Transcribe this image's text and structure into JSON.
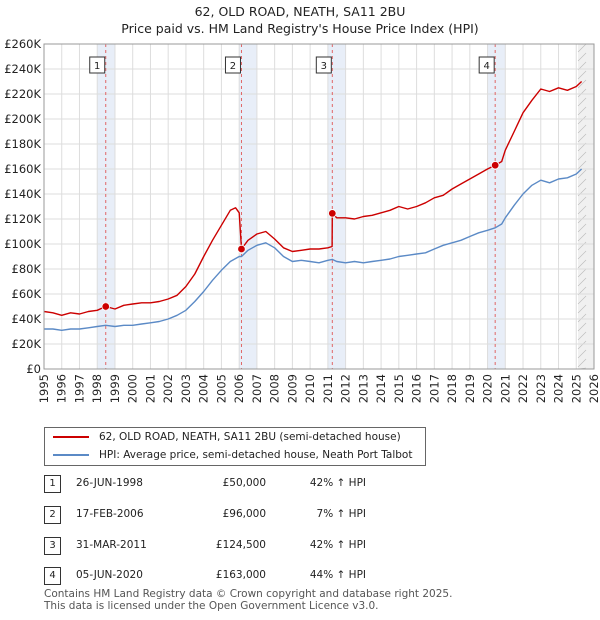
{
  "title_line1": "62, OLD ROAD, NEATH, SA11 2BU",
  "title_line2": "Price paid vs. HM Land Registry's House Price Index (HPI)",
  "colors": {
    "property_line": "#cc0000",
    "hpi_line": "#5b8ac6",
    "vline": "#e06666",
    "shade": "#e8eef8",
    "grid": "#dddddd"
  },
  "legend": {
    "property_label": "62, OLD ROAD, NEATH, SA11 2BU (semi-detached house)",
    "hpi_label": "HPI: Average price, semi-detached house, Neath Port Talbot"
  },
  "sales": [
    {
      "num": "1",
      "date": "26-JUN-1998",
      "price": "£50,000",
      "hpi": "42% ↑ HPI"
    },
    {
      "num": "2",
      "date": "17-FEB-2006",
      "price": "£96,000",
      "hpi": "7% ↑ HPI"
    },
    {
      "num": "3",
      "date": "31-MAR-2011",
      "price": "£124,500",
      "hpi": "42% ↑ HPI"
    },
    {
      "num": "4",
      "date": "05-JUN-2020",
      "price": "£163,000",
      "hpi": "44% ↑ HPI"
    }
  ],
  "footer_line1": "Contains HM Land Registry data © Crown copyright and database right 2025.",
  "footer_line2": "This data is licensed under the Open Government Licence v3.0.",
  "chart_data": {
    "type": "line",
    "title": "Price paid vs. HM Land Registry's House Price Index (HPI)",
    "xlabel": "",
    "ylabel": "",
    "xlim": [
      1995,
      2026
    ],
    "ylim": [
      0,
      260000
    ],
    "x_ticks": [
      1995,
      1996,
      1997,
      1998,
      1999,
      2000,
      2001,
      2002,
      2003,
      2004,
      2005,
      2006,
      2007,
      2008,
      2009,
      2010,
      2011,
      2012,
      2013,
      2014,
      2015,
      2016,
      2017,
      2018,
      2019,
      2020,
      2021,
      2022,
      2023,
      2024,
      2025,
      2026
    ],
    "y_ticks": [
      0,
      20000,
      40000,
      60000,
      80000,
      100000,
      120000,
      140000,
      160000,
      180000,
      200000,
      220000,
      240000,
      260000
    ],
    "y_tick_labels": [
      "£0",
      "£20K",
      "£40K",
      "£60K",
      "£80K",
      "£100K",
      "£120K",
      "£140K",
      "£160K",
      "£180K",
      "£200K",
      "£220K",
      "£240K",
      "£260K"
    ],
    "sale_markers": [
      {
        "label": "1",
        "x": 1998.48,
        "y": 50000
      },
      {
        "label": "2",
        "x": 2006.13,
        "y": 96000
      },
      {
        "label": "3",
        "x": 2011.25,
        "y": 124500
      },
      {
        "label": "4",
        "x": 2020.43,
        "y": 163000
      }
    ],
    "forecast_start": 2025.1,
    "series": [
      {
        "name": "62, OLD ROAD, NEATH, SA11 2BU (semi-detached house)",
        "x": [
          1995.0,
          1995.5,
          1996.0,
          1996.5,
          1997.0,
          1997.5,
          1998.0,
          1998.48,
          1999.0,
          1999.5,
          2000.0,
          2000.5,
          2001.0,
          2001.5,
          2002.0,
          2002.5,
          2003.0,
          2003.5,
          2004.0,
          2004.5,
          2005.0,
          2005.5,
          2005.8,
          2006.0,
          2006.13,
          2006.5,
          2007.0,
          2007.5,
          2008.0,
          2008.5,
          2009.0,
          2009.5,
          2010.0,
          2010.5,
          2011.0,
          2011.24,
          2011.25,
          2011.5,
          2012.0,
          2012.5,
          2013.0,
          2013.5,
          2014.0,
          2014.5,
          2015.0,
          2015.5,
          2016.0,
          2016.5,
          2017.0,
          2017.5,
          2018.0,
          2018.5,
          2019.0,
          2019.5,
          2020.0,
          2020.43,
          2020.8,
          2021.0,
          2021.5,
          2022.0,
          2022.5,
          2023.0,
          2023.5,
          2024.0,
          2024.5,
          2025.0,
          2025.3
        ],
        "values": [
          46000,
          45000,
          43000,
          45000,
          44000,
          46000,
          47000,
          50000,
          48000,
          51000,
          52000,
          53000,
          53000,
          54000,
          56000,
          59000,
          66000,
          76000,
          90000,
          103000,
          115000,
          127000,
          129000,
          125000,
          96000,
          103000,
          108000,
          110000,
          104000,
          97000,
          94000,
          95000,
          96000,
          96000,
          97000,
          98000,
          124500,
          121000,
          121000,
          120000,
          122000,
          123000,
          125000,
          127000,
          130000,
          128000,
          130000,
          133000,
          137000,
          139000,
          144000,
          148000,
          152000,
          156000,
          160000,
          163000,
          166000,
          175000,
          190000,
          205000,
          215000,
          224000,
          222000,
          225000,
          223000,
          226000,
          230000
        ]
      },
      {
        "name": "HPI: Average price, semi-detached house, Neath Port Talbot",
        "x": [
          1995.0,
          1995.5,
          1996.0,
          1996.5,
          1997.0,
          1997.5,
          1998.0,
          1998.48,
          1999.0,
          1999.5,
          2000.0,
          2000.5,
          2001.0,
          2001.5,
          2002.0,
          2002.5,
          2003.0,
          2003.5,
          2004.0,
          2004.5,
          2005.0,
          2005.5,
          2006.0,
          2006.13,
          2006.5,
          2007.0,
          2007.5,
          2008.0,
          2008.5,
          2009.0,
          2009.5,
          2010.0,
          2010.5,
          2011.0,
          2011.25,
          2011.5,
          2012.0,
          2012.5,
          2013.0,
          2013.5,
          2014.0,
          2014.5,
          2015.0,
          2015.5,
          2016.0,
          2016.5,
          2017.0,
          2017.5,
          2018.0,
          2018.5,
          2019.0,
          2019.5,
          2020.0,
          2020.43,
          2020.8,
          2021.0,
          2021.5,
          2022.0,
          2022.5,
          2023.0,
          2023.5,
          2024.0,
          2024.5,
          2025.0,
          2025.3
        ],
        "values": [
          32000,
          32000,
          31000,
          32000,
          32000,
          33000,
          34000,
          35000,
          34000,
          35000,
          35000,
          36000,
          37000,
          38000,
          40000,
          43000,
          47000,
          54000,
          62000,
          71000,
          79000,
          86000,
          90000,
          90000,
          95000,
          99000,
          101000,
          97000,
          90000,
          86000,
          87000,
          86000,
          85000,
          87000,
          87700,
          86000,
          85000,
          86000,
          85000,
          86000,
          87000,
          88000,
          90000,
          91000,
          92000,
          93000,
          96000,
          99000,
          101000,
          103000,
          106000,
          109000,
          111000,
          113000,
          116000,
          121000,
          131000,
          140000,
          147000,
          151000,
          149000,
          152000,
          153000,
          156000,
          160000
        ]
      }
    ]
  }
}
